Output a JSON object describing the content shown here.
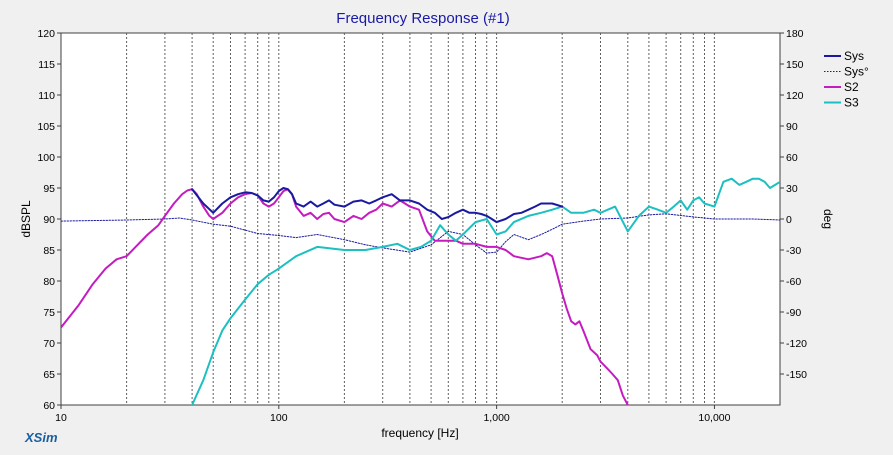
{
  "chart_data": {
    "type": "line",
    "title": "Frequency Response (#1)",
    "xlabel": "frequency [Hz]",
    "ylabel": "dBSPL",
    "y2label": "deg",
    "x_scale": "log",
    "xlim": [
      10,
      20000
    ],
    "ylim": [
      60,
      120
    ],
    "y2lim": [
      -180,
      180
    ],
    "x_ticks": [
      10,
      100,
      1000,
      10000
    ],
    "x_tick_labels": [
      "10",
      "100",
      "1,000",
      "10,000"
    ],
    "y_ticks": [
      60,
      65,
      70,
      75,
      80,
      85,
      90,
      95,
      100,
      105,
      110,
      115,
      120
    ],
    "y2_ticks": [
      -150,
      -120,
      -90,
      -60,
      -30,
      0,
      30,
      60,
      90,
      120,
      150,
      180
    ],
    "watermark": "XSim",
    "grid": "dotted vertical per decade subdivision",
    "legend_position": "top-right",
    "colors": {
      "title": "#1a1aa6",
      "sys": "#1a1aa0",
      "sys_phase": "#1a1aa0",
      "s2": "#c41cc0",
      "s3": "#1cc0c0",
      "grid": "#606060",
      "watermark": "#1a5fa0"
    },
    "series": [
      {
        "name": "Sys",
        "axis": "left",
        "style": "solid",
        "color": "#1a1aa0",
        "x": [
          40,
          45,
          50,
          55,
          60,
          65,
          70,
          75,
          80,
          85,
          90,
          95,
          100,
          105,
          110,
          115,
          120,
          130,
          140,
          150,
          160,
          170,
          180,
          200,
          220,
          240,
          260,
          280,
          300,
          330,
          360,
          400,
          440,
          480,
          520,
          560,
          600,
          650,
          700,
          750,
          800,
          850,
          900,
          950,
          1000,
          1100,
          1200,
          1300,
          1400,
          1500,
          1600,
          1800,
          2000
        ],
        "y": [
          94.8,
          92.5,
          91.0,
          92.5,
          93.5,
          94.0,
          94.3,
          94.2,
          93.8,
          93.0,
          92.8,
          93.5,
          94.5,
          95.0,
          94.8,
          94.0,
          92.5,
          92.0,
          92.8,
          92.0,
          92.5,
          93.0,
          92.3,
          92.0,
          92.8,
          93.0,
          92.5,
          93.0,
          93.5,
          94.0,
          93.0,
          93.0,
          92.5,
          91.5,
          91.0,
          90.0,
          90.3,
          91.0,
          91.5,
          91.0,
          91.0,
          90.8,
          90.5,
          90.0,
          89.5,
          90.0,
          90.8,
          91.0,
          91.5,
          92.0,
          92.5,
          92.5,
          92.0
        ]
      },
      {
        "name": "Sys°",
        "axis": "right",
        "style": "dotted",
        "color": "#1a1aa0",
        "x": [
          10,
          20,
          30,
          35,
          40,
          50,
          60,
          80,
          100,
          120,
          150,
          200,
          250,
          300,
          400,
          500,
          600,
          700,
          800,
          900,
          1000,
          1100,
          1200,
          1400,
          1600,
          1800,
          2000,
          2500,
          3000,
          4000,
          5000,
          6000,
          8000,
          10000,
          15000,
          20000
        ],
        "y": [
          -2,
          -1,
          0,
          1,
          -1,
          -5,
          -7,
          -14,
          -16,
          -18,
          -15,
          -20,
          -25,
          -28,
          -32,
          -25,
          -12,
          -15,
          -25,
          -33,
          -32,
          -22,
          -15,
          -20,
          -15,
          -10,
          -5,
          -2,
          0,
          1,
          4,
          5,
          2,
          0,
          0,
          -1
        ]
      },
      {
        "name": "S2",
        "axis": "left",
        "style": "solid",
        "color": "#c41cc0",
        "x": [
          10,
          12,
          14,
          16,
          18,
          20,
          22,
          25,
          28,
          30,
          33,
          36,
          38,
          40,
          42,
          45,
          48,
          50,
          55,
          60,
          65,
          70,
          75,
          80,
          85,
          90,
          95,
          100,
          105,
          110,
          115,
          120,
          130,
          140,
          150,
          160,
          170,
          180,
          200,
          220,
          240,
          260,
          280,
          300,
          330,
          360,
          400,
          440,
          480,
          520,
          560,
          600,
          650,
          700,
          750,
          800,
          900,
          1000,
          1100,
          1200,
          1400,
          1600,
          1700,
          1800,
          1900,
          2000,
          2100,
          2200,
          2300,
          2400,
          2500,
          2700,
          2900,
          3000,
          3200,
          3400,
          3600,
          3800,
          4000
        ],
        "y": [
          72.5,
          76.0,
          79.5,
          82.0,
          83.5,
          84.0,
          85.5,
          87.5,
          89.0,
          90.5,
          92.5,
          94.0,
          94.6,
          94.8,
          94.0,
          92.0,
          90.5,
          90.0,
          91.0,
          92.5,
          93.5,
          94.0,
          94.2,
          93.8,
          92.5,
          92.0,
          92.5,
          93.5,
          94.5,
          94.8,
          94.0,
          92.0,
          90.5,
          91.0,
          90.0,
          90.8,
          91.0,
          90.0,
          89.5,
          90.5,
          90.0,
          91.0,
          91.5,
          92.5,
          92.0,
          93.0,
          92.0,
          91.5,
          88.0,
          86.5,
          86.5,
          86.5,
          86.5,
          86.0,
          86.0,
          86.0,
          85.5,
          85.5,
          85.0,
          84.0,
          83.5,
          84.0,
          84.5,
          84.0,
          81.0,
          78.0,
          75.5,
          73.5,
          73.0,
          73.5,
          72.0,
          69.0,
          68.0,
          67.0,
          66.0,
          65.0,
          64.0,
          61.5,
          60.0
        ]
      },
      {
        "name": "S3",
        "axis": "left",
        "style": "solid",
        "color": "#1cc0c0",
        "x": [
          40,
          45,
          50,
          55,
          60,
          70,
          80,
          90,
          100,
          120,
          150,
          200,
          250,
          300,
          350,
          400,
          450,
          500,
          550,
          600,
          650,
          700,
          800,
          900,
          1000,
          1100,
          1200,
          1400,
          1600,
          1800,
          2000,
          2200,
          2500,
          2800,
          3000,
          3500,
          4000,
          4500,
          5000,
          5500,
          6000,
          6500,
          7000,
          7500,
          8000,
          8500,
          9000,
          10000,
          11000,
          12000,
          13000,
          14000,
          15000,
          16000,
          17000,
          18000,
          19000,
          20000
        ],
        "y": [
          60.0,
          64.0,
          68.5,
          72.0,
          74.0,
          77.0,
          79.5,
          81.0,
          82.0,
          84.0,
          85.5,
          85.0,
          85.0,
          85.5,
          86.0,
          85.0,
          85.5,
          86.5,
          89.0,
          87.5,
          86.5,
          87.5,
          89.5,
          90.0,
          87.5,
          88.0,
          89.5,
          90.5,
          91.0,
          91.5,
          92.0,
          91.0,
          91.0,
          91.5,
          91.0,
          92.0,
          88.0,
          90.5,
          92.0,
          91.5,
          91.0,
          92.0,
          93.0,
          91.5,
          93.0,
          93.5,
          92.5,
          92.0,
          96.0,
          96.5,
          95.5,
          96.0,
          96.5,
          96.5,
          96.0,
          95.0,
          95.5,
          96.0
        ]
      }
    ]
  }
}
